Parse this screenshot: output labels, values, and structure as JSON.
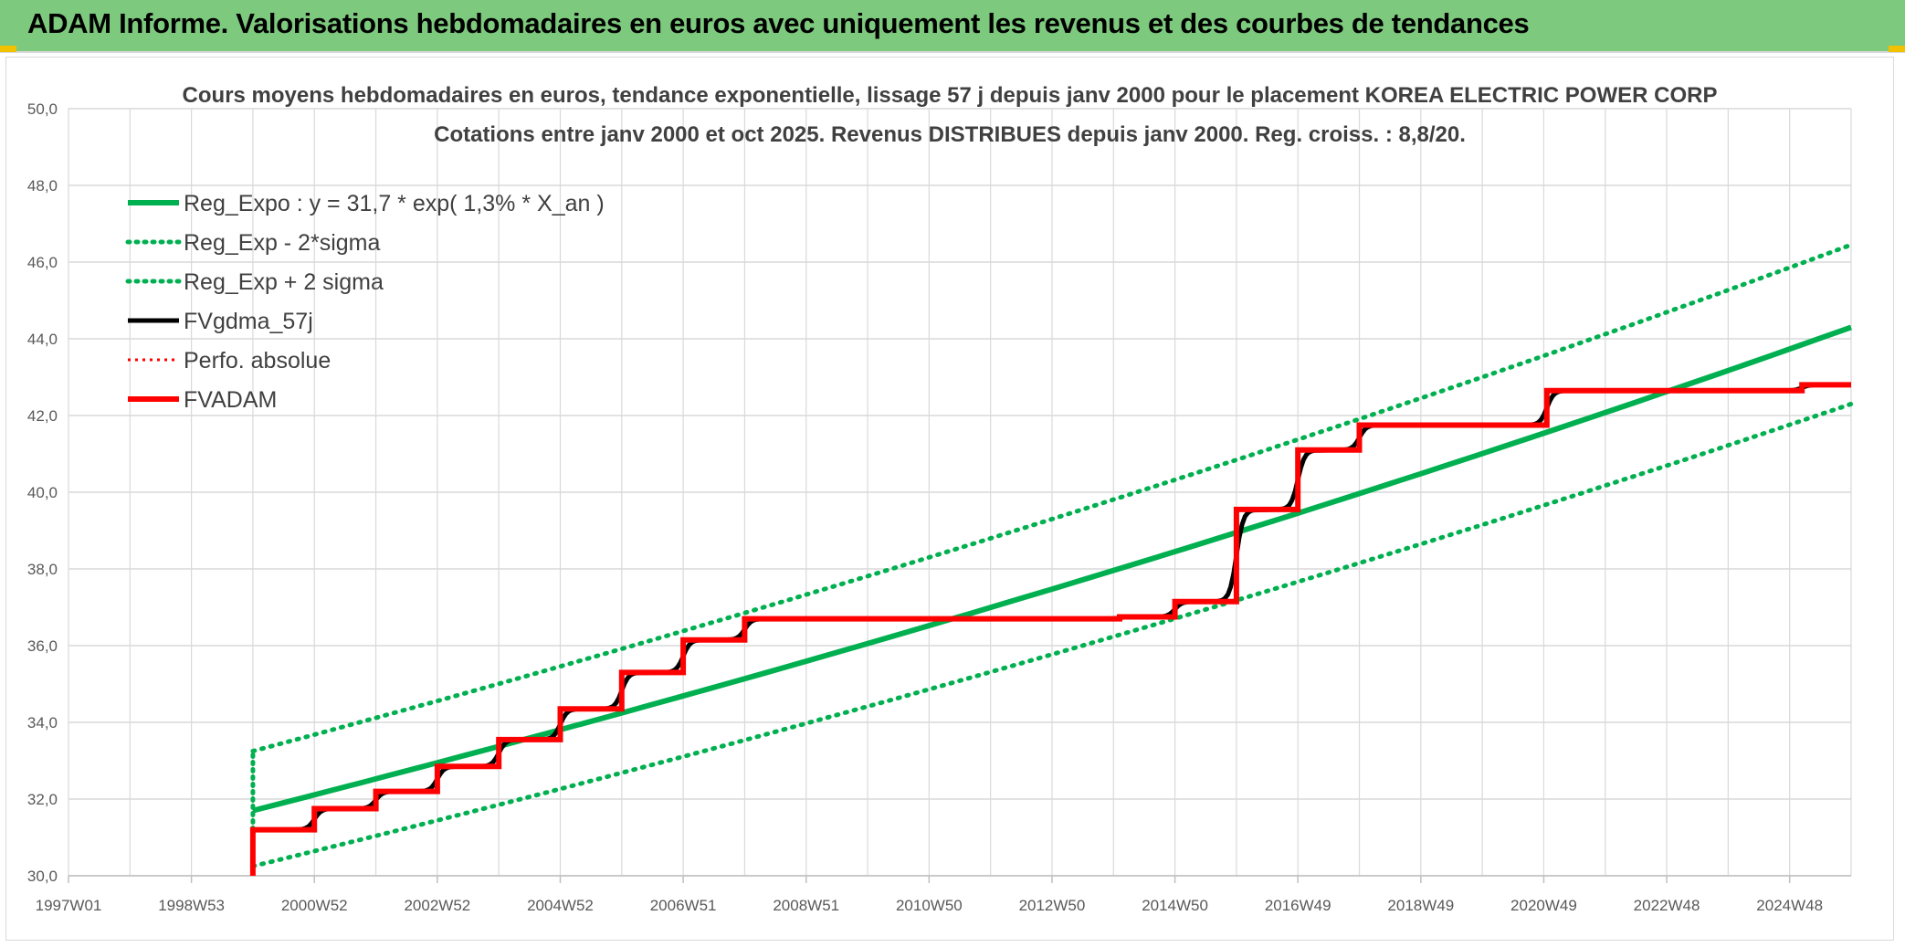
{
  "header": {
    "banner_title": "ADAM Informe. Valorisations hebdomadaires en euros avec uniquement les revenus et des courbes de tendances"
  },
  "colors": {
    "banner_bg": "#7dc97d",
    "regression": "#00b050",
    "fvgdma": "#000000",
    "fvadam": "#ff0000",
    "grid": "#d9d9d9"
  },
  "chart_data": {
    "type": "line",
    "title_line1": "Cours moyens hebdomadaires en euros, tendance exponentielle, lissage 57 j depuis janv 2000 pour le placement KOREA ELECTRIC POWER CORP",
    "title_line2": "Cotations entre janv 2000 et oct 2025. Revenus DISTRIBUES depuis janv 2000. Reg. croiss. : 8,8/20.",
    "ylim": [
      30,
      50
    ],
    "y_ticks": [
      "30,0",
      "32,0",
      "34,0",
      "36,0",
      "38,0",
      "40,0",
      "42,0",
      "44,0",
      "46,0",
      "48,0",
      "50,0"
    ],
    "xlim": [
      1997.0,
      2026.0
    ],
    "x_ticks": [
      {
        "label": "1997W01",
        "x": 1997.0
      },
      {
        "label": "1998W53",
        "x": 1999.0
      },
      {
        "label": "2000W52",
        "x": 2001.0
      },
      {
        "label": "2002W52",
        "x": 2003.0
      },
      {
        "label": "2004W52",
        "x": 2005.0
      },
      {
        "label": "2006W51",
        "x": 2007.0
      },
      {
        "label": "2008W51",
        "x": 2009.0
      },
      {
        "label": "2010W50",
        "x": 2011.0
      },
      {
        "label": "2012W50",
        "x": 2013.0
      },
      {
        "label": "2014W50",
        "x": 2015.0
      },
      {
        "label": "2016W49",
        "x": 2017.0
      },
      {
        "label": "2018W49",
        "x": 2019.0
      },
      {
        "label": "2020W49",
        "x": 2021.0
      },
      {
        "label": "2022W48",
        "x": 2023.0
      },
      {
        "label": "2024W48",
        "x": 2025.0
      }
    ],
    "legend": [
      {
        "name": "Reg_Expo : y = 31,7 * exp( 1,3% *  X_an )",
        "color": "#00b050",
        "style": "solid",
        "width": 6
      },
      {
        "name": "Reg_Exp - 2*sigma",
        "color": "#00b050",
        "style": "dotted",
        "width": 5
      },
      {
        "name": "Reg_Exp + 2 sigma",
        "color": "#00b050",
        "style": "dotted",
        "width": 5
      },
      {
        "name": "FVgdma_57j",
        "color": "#000000",
        "style": "solid",
        "width": 5
      },
      {
        "name": "Perfo. absolue",
        "color": "#ff0000",
        "style": "dotted",
        "width": 3
      },
      {
        "name": "FVADAM",
        "color": "#ff0000",
        "style": "solid",
        "width": 6
      }
    ],
    "series": [
      {
        "name": "Reg_Expo : y = 31,7 * exp( 1,3% *  X_an )",
        "x": [
          2000.0,
          2026.0
        ],
        "y": [
          31.7,
          44.3
        ]
      },
      {
        "name": "Reg_Exp - 2*sigma",
        "x": [
          2000.0,
          2026.0
        ],
        "y": [
          30.25,
          42.3
        ]
      },
      {
        "name": "Reg_Exp + 2 sigma",
        "x": [
          2000.0,
          2026.0
        ],
        "y": [
          33.25,
          46.45
        ]
      },
      {
        "name": "FVADAM",
        "steps": [
          [
            2000.0,
            31.2
          ],
          [
            2001.0,
            31.75
          ],
          [
            2002.0,
            32.2
          ],
          [
            2003.0,
            32.85
          ],
          [
            2004.0,
            33.55
          ],
          [
            2005.0,
            34.35
          ],
          [
            2006.0,
            35.3
          ],
          [
            2007.0,
            36.15
          ],
          [
            2008.0,
            36.7
          ],
          [
            2014.1,
            36.75
          ],
          [
            2015.0,
            37.15
          ],
          [
            2016.0,
            39.55
          ],
          [
            2017.0,
            41.1
          ],
          [
            2018.0,
            41.75
          ],
          [
            2021.05,
            42.65
          ],
          [
            2025.2,
            42.8
          ]
        ],
        "end_x": 2026.0,
        "start_y": 30.0
      }
    ]
  }
}
